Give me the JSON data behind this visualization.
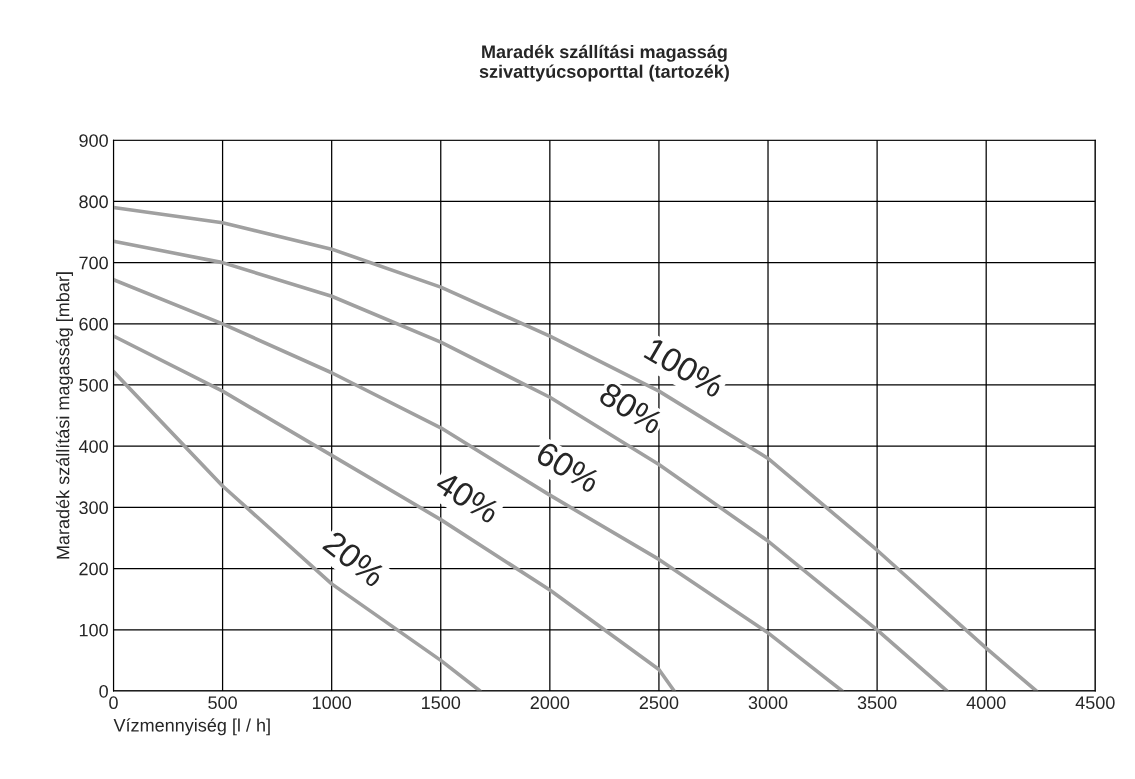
{
  "chart_data": {
    "type": "line",
    "title": "Maradék szállítási magasság\nszivattyúcsoporttal (tartozék)",
    "xlabel": "Vízmennyiség [l / h]",
    "ylabel": "Maradék szállítási magasság [mbar]",
    "xlim": [
      0,
      4500
    ],
    "ylim": [
      0,
      900
    ],
    "xticks": [
      0,
      500,
      1000,
      1500,
      2000,
      2500,
      3000,
      3500,
      4000,
      4500
    ],
    "yticks": [
      0,
      100,
      200,
      300,
      400,
      500,
      600,
      700,
      800,
      900
    ],
    "grid": true,
    "legend": false,
    "marker": "none",
    "line_style": "solid",
    "series": [
      {
        "name": "100%",
        "color": "#a0a0a0",
        "x": [
          0,
          500,
          1000,
          1500,
          2000,
          2500,
          3000,
          3500,
          4000,
          4230
        ],
        "values": [
          790,
          765,
          722,
          660,
          580,
          490,
          380,
          230,
          70,
          0
        ]
      },
      {
        "name": "80%",
        "color": "#a0a0a0",
        "x": [
          0,
          500,
          1000,
          1500,
          2000,
          2500,
          3000,
          3500,
          3820
        ],
        "values": [
          735,
          700,
          645,
          570,
          480,
          370,
          245,
          100,
          0
        ]
      },
      {
        "name": "60%",
        "color": "#a0a0a0",
        "x": [
          0,
          500,
          1000,
          1500,
          2000,
          2500,
          3000,
          3340
        ],
        "values": [
          672,
          600,
          520,
          430,
          320,
          215,
          95,
          0
        ]
      },
      {
        "name": "40%",
        "color": "#a0a0a0",
        "x": [
          0,
          500,
          1000,
          1500,
          2000,
          2500,
          2570
        ],
        "values": [
          580,
          490,
          385,
          280,
          165,
          35,
          0
        ]
      },
      {
        "name": "20%",
        "color": "#a0a0a0",
        "x": [
          0,
          500,
          1000,
          1500,
          1680
        ],
        "values": [
          522,
          335,
          175,
          50,
          0
        ]
      }
    ]
  }
}
